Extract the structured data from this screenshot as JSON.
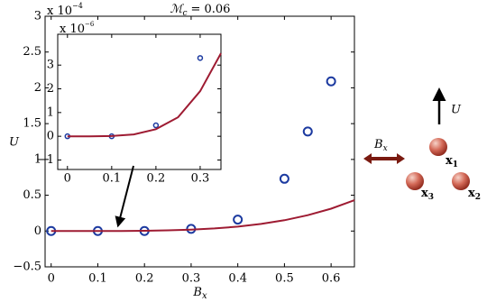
{
  "chart_data": [
    {
      "type": "scatter",
      "title_symbol": "ℳ",
      "title_subscript": "c",
      "title_rest": "= 0.06",
      "x_label": "B",
      "x_label_subscript": "x",
      "y_label": "U",
      "y_multiplier": "x 10",
      "y_exponent": "−4",
      "xlim": [
        -0.013,
        0.65
      ],
      "ylim": [
        -0.5,
        3
      ],
      "xticks": [
        0,
        0.1,
        0.2,
        0.3,
        0.4,
        0.5,
        0.6
      ],
      "yticks": [
        {
          "value": -0.5,
          "label": "−0.5"
        },
        0,
        0.5,
        1,
        1.5,
        2,
        2.5,
        3
      ],
      "series": [
        {
          "style": "markers",
          "color": "#1c3aa0",
          "x": [
            0,
            0.1,
            0.2,
            0.3,
            0.4,
            0.5,
            0.55,
            0.6
          ],
          "values": [
            0,
            0,
            0,
            0.03,
            0.16,
            0.73,
            1.39,
            2.09
          ]
        },
        {
          "style": "line",
          "color": "#9e1b32",
          "x": [
            0,
            0.05,
            0.1,
            0.15,
            0.2,
            0.25,
            0.3,
            0.35,
            0.4,
            0.45,
            0.5,
            0.55,
            0.6,
            0.65
          ],
          "values": [
            0,
            0,
            0.0002,
            0.0012,
            0.0039,
            0.0094,
            0.0195,
            0.0362,
            0.0617,
            0.0988,
            0.151,
            0.221,
            0.312,
            0.43
          ]
        }
      ]
    },
    {
      "type": "scatter",
      "y_multiplier": "x 10",
      "y_exponent": "−6",
      "xlim": [
        -0.022,
        0.347
      ],
      "ylim": [
        -1.4,
        4.3
      ],
      "xticks": [
        0,
        0.1,
        0.2,
        0.3
      ],
      "yticks": [
        {
          "value": -1,
          "label": "−1"
        },
        0,
        1,
        2,
        3
      ],
      "series": [
        {
          "style": "markers",
          "color": "#1c3aa0",
          "x": [
            0,
            0.1,
            0.2,
            0.3
          ],
          "values": [
            0,
            0,
            0.46,
            3.3
          ]
        },
        {
          "style": "line",
          "color": "#9e1b32",
          "x": [
            0,
            0.05,
            0.1,
            0.15,
            0.2,
            0.25,
            0.3,
            0.347
          ],
          "values": [
            0,
            0,
            0.01,
            0.08,
            0.3,
            0.8,
            1.9,
            3.5
          ]
        }
      ]
    }
  ],
  "diagram": {
    "u_label": "U",
    "b_label": "B",
    "b_subscript": "x",
    "particles": [
      {
        "label": "x",
        "subscript": "1"
      },
      {
        "label": "x",
        "subscript": "2"
      },
      {
        "label": "x",
        "subscript": "3"
      }
    ]
  }
}
